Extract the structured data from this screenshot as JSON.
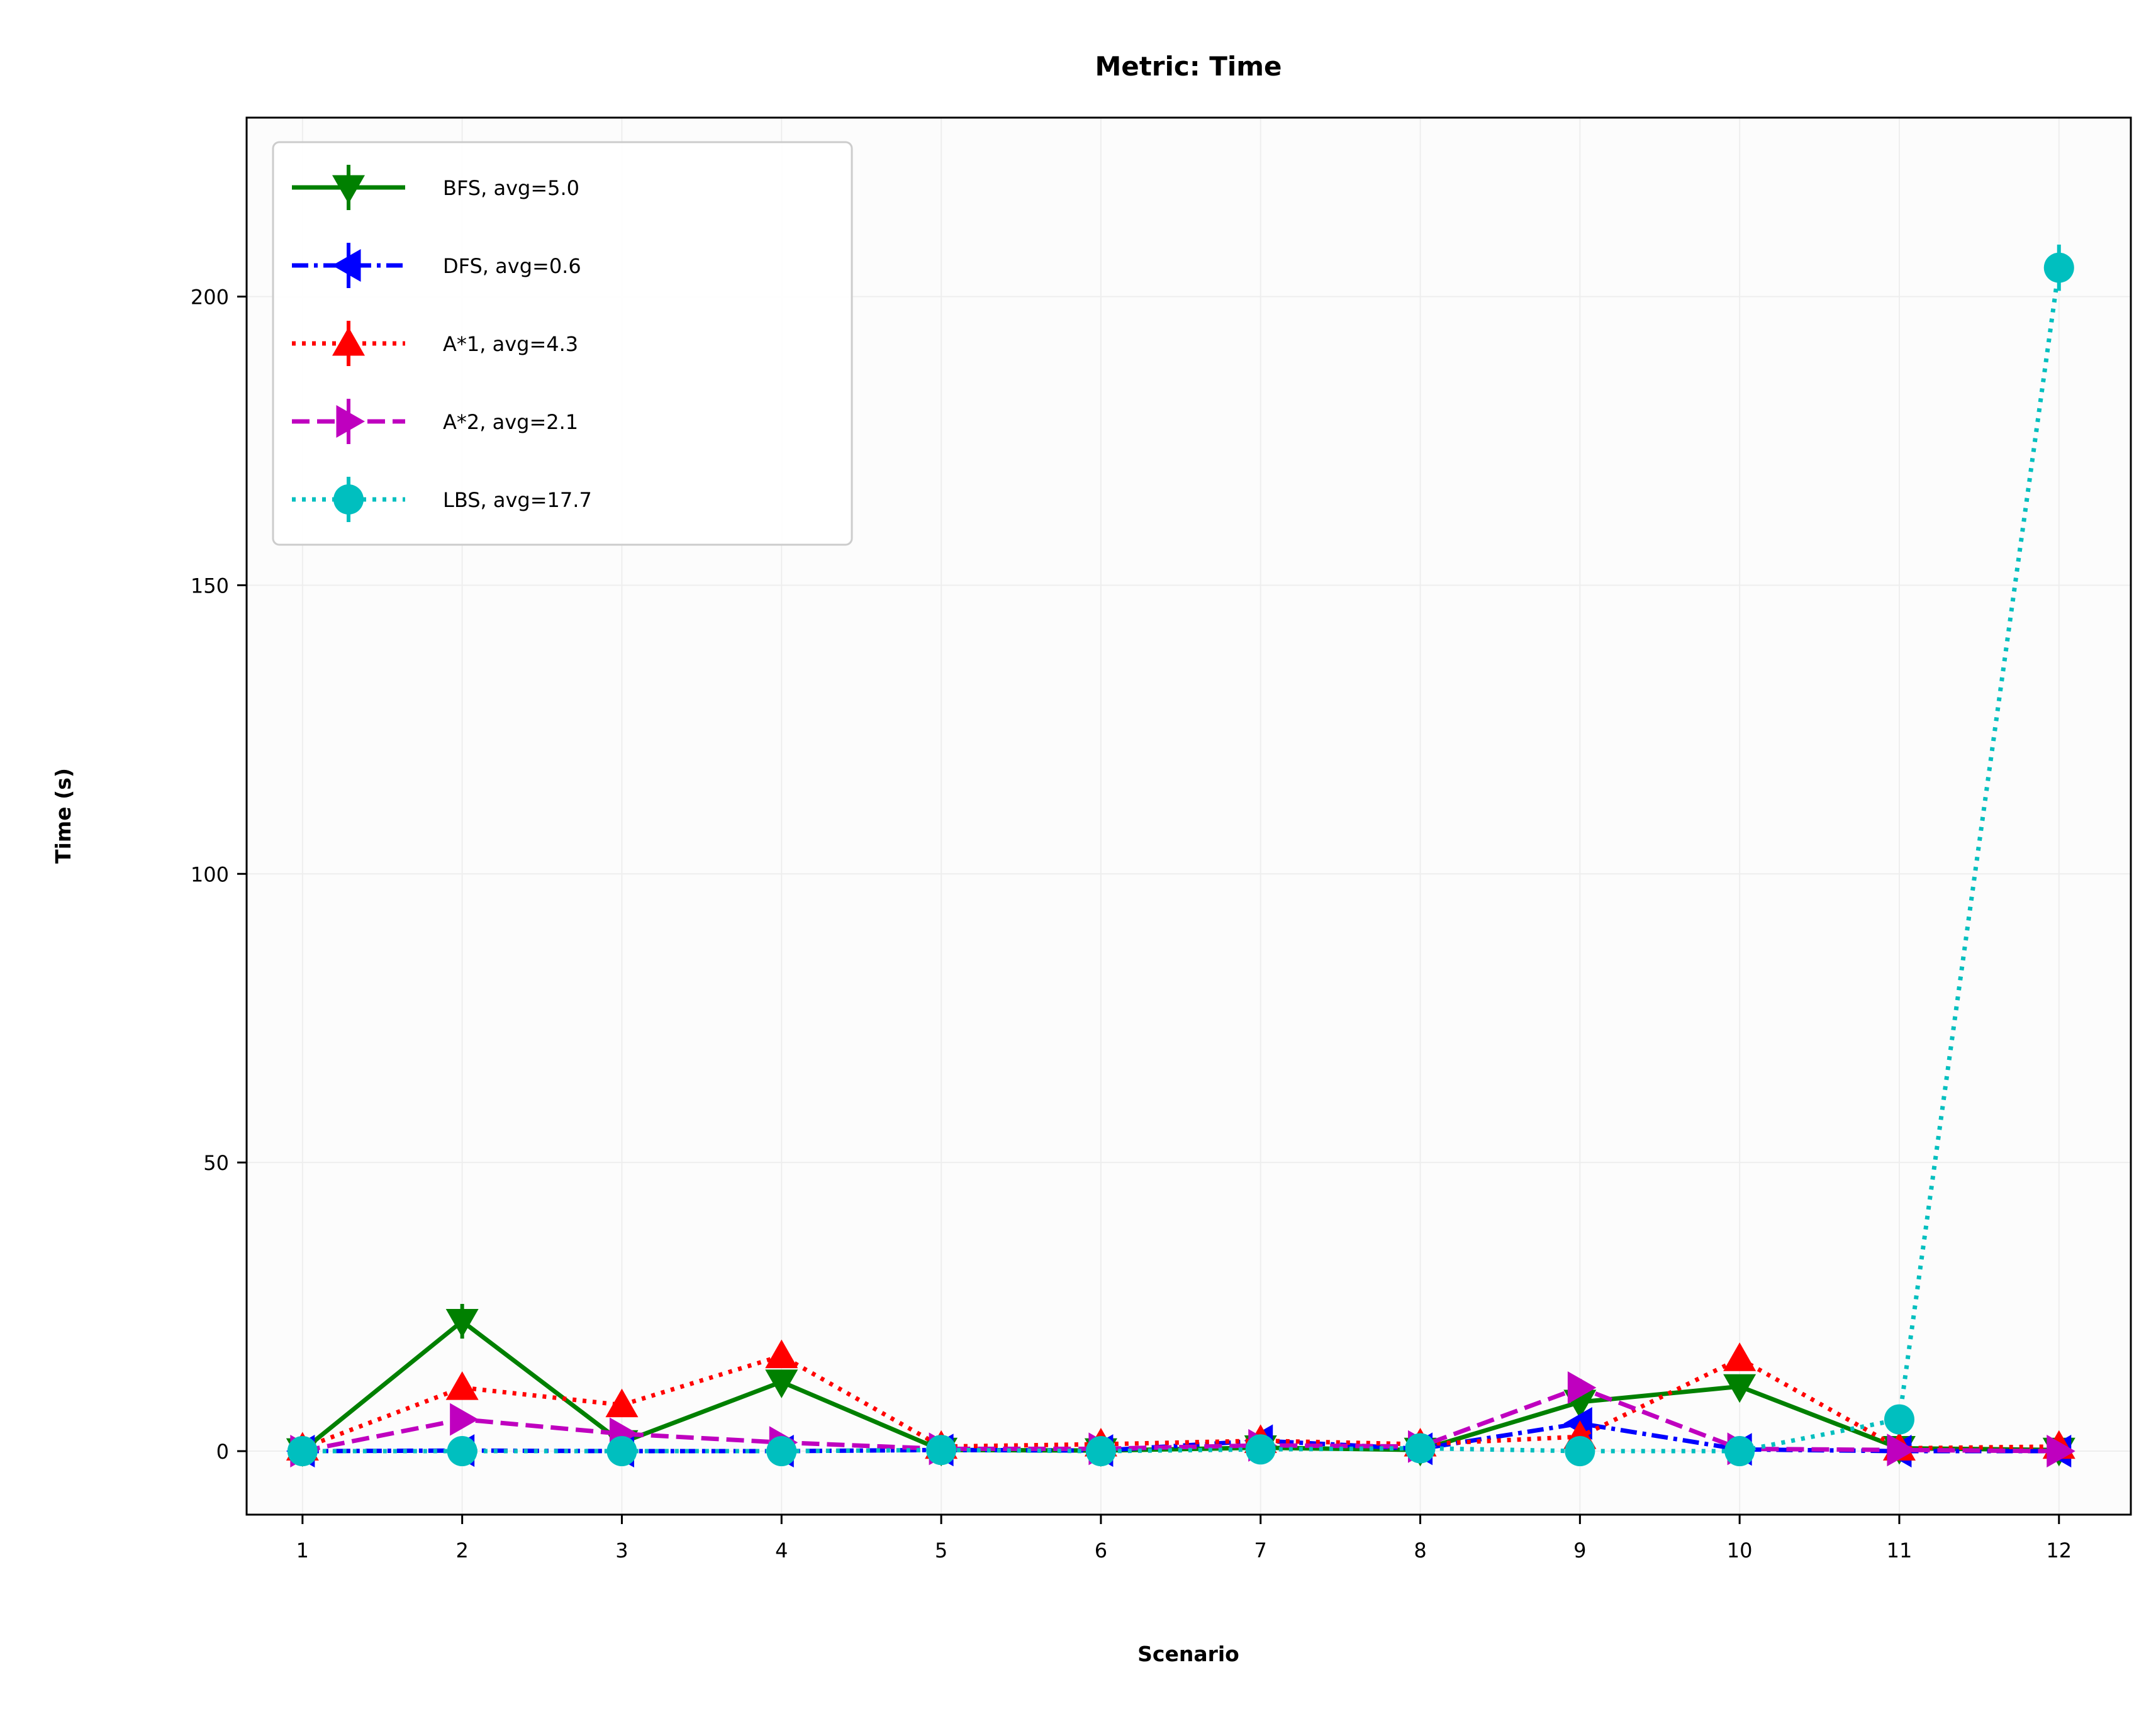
{
  "chart_data": {
    "type": "line",
    "title": "Metric: Time",
    "xlabel": "Scenario",
    "ylabel": "Time (s)",
    "x": [
      1,
      2,
      3,
      4,
      5,
      6,
      7,
      8,
      9,
      10,
      11,
      12
    ],
    "xlim": [
      0.65,
      12.45
    ],
    "ylim": [
      -11,
      231
    ],
    "yticks": [
      0,
      50,
      100,
      150,
      200
    ],
    "grid": true,
    "legend_position": "upper-left",
    "series": [
      {
        "name": "BFS, avg=5.0",
        "color": "#008000",
        "linestyle": "solid",
        "marker": "triangle-down",
        "values": [
          0.1,
          22.5,
          1.5,
          12.0,
          0.2,
          0.1,
          0.6,
          0.2,
          8.5,
          11.2,
          0.5,
          0.2
        ],
        "errors": [
          0.5,
          3.0,
          0.8,
          1.5,
          0.3,
          0.3,
          0.5,
          0.3,
          1.0,
          1.2,
          0.5,
          0.3
        ]
      },
      {
        "name": "DFS, avg=0.6",
        "color": "#0000ff",
        "linestyle": "dashdot",
        "marker": "triangle-left",
        "values": [
          0.0,
          0.1,
          0.0,
          0.0,
          0.2,
          0.1,
          1.8,
          0.4,
          4.8,
          0.3,
          0.0,
          0.0
        ],
        "errors": [
          0.2,
          0.2,
          0.2,
          0.2,
          0.2,
          0.2,
          0.8,
          0.3,
          1.0,
          0.3,
          0.2,
          0.2
        ]
      },
      {
        "name": "A*1, avg=4.3",
        "color": "#ff0000",
        "linestyle": "dotted",
        "marker": "triangle-up",
        "values": [
          0.5,
          11.0,
          8.0,
          16.5,
          0.8,
          1.2,
          1.8,
          1.2,
          2.5,
          16.0,
          0.5,
          0.8
        ],
        "errors": [
          0.4,
          2.0,
          1.5,
          2.0,
          0.4,
          0.4,
          0.6,
          0.4,
          0.6,
          2.0,
          0.4,
          0.4
        ]
      },
      {
        "name": "A*2, avg=2.1",
        "color": "#bf00bf",
        "linestyle": "dashed",
        "marker": "triangle-right",
        "values": [
          0.0,
          5.5,
          3.0,
          1.5,
          0.4,
          0.4,
          1.0,
          0.8,
          11.0,
          0.4,
          0.2,
          0.0
        ],
        "errors": [
          0.3,
          1.0,
          0.7,
          0.5,
          0.3,
          0.3,
          0.4,
          0.4,
          1.5,
          0.3,
          0.3,
          0.3
        ]
      },
      {
        "name": "LBS, avg=17.7",
        "color": "#00bfbf",
        "linestyle": "dotted",
        "marker": "circle",
        "values": [
          0.0,
          0.0,
          0.0,
          0.0,
          0.2,
          0.0,
          0.3,
          0.5,
          0.0,
          0.0,
          5.5,
          205.0
        ],
        "errors": [
          0.2,
          0.2,
          0.2,
          0.2,
          0.2,
          0.2,
          0.3,
          0.3,
          0.2,
          0.2,
          1.0,
          4.0
        ]
      }
    ]
  }
}
